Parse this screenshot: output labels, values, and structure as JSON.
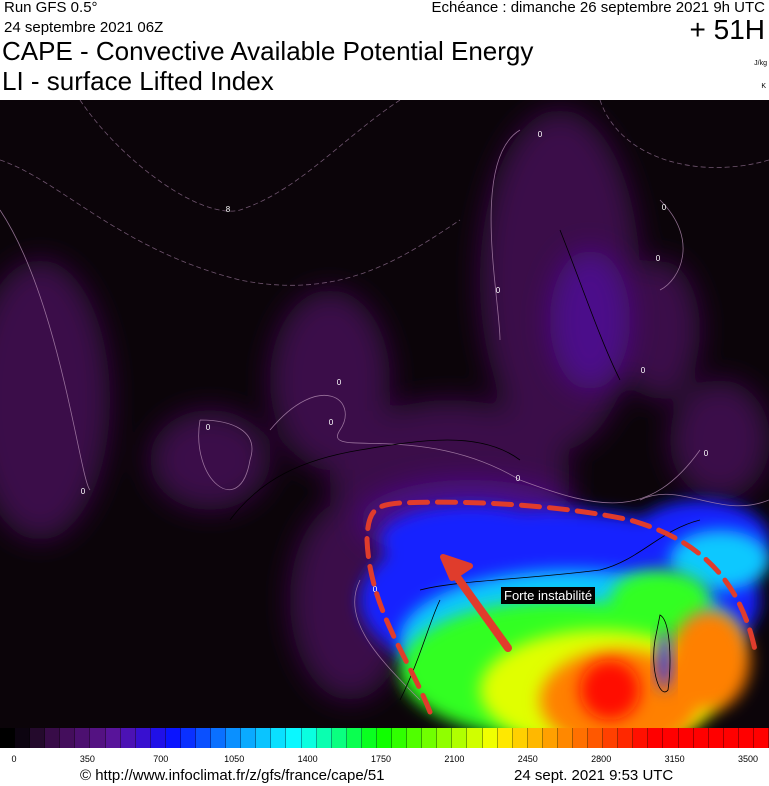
{
  "header": {
    "run": "Run GFS 0.5°",
    "run_date": "24 septembre 2021 06Z",
    "echeance": "Echéance : dimanche 26 septembre 2021 9h UTC",
    "lead_time": "+ 51H",
    "title_cape": "CAPE - Convective Available Potential Energy",
    "title_li": "LI - surface Lifted Index",
    "unit_cape": "J/kg",
    "unit_li": "K"
  },
  "map": {
    "annotation": "Forte instabilité",
    "annotation_color": "#e03c2c",
    "contour_labels": [
      "0",
      "8",
      "0",
      "0",
      "0",
      "0",
      "0",
      "0",
      "0",
      "0",
      "0",
      "0",
      "0"
    ]
  },
  "colorbar": {
    "tick_labels": [
      "0",
      "350",
      "700",
      "1050",
      "1400",
      "1750",
      "2100",
      "2450",
      "2800",
      "3150",
      "3500"
    ],
    "colors": [
      "#000000",
      "#0c0410",
      "#240a2c",
      "#380c48",
      "#440e5c",
      "#4c1070",
      "#541282",
      "#58149a",
      "#4c12b4",
      "#3810d0",
      "#2010e8",
      "#0a14ff",
      "#0a30ff",
      "#0a50ff",
      "#0a70ff",
      "#0a90ff",
      "#0aaaff",
      "#0ac4ff",
      "#0ae0ff",
      "#0af8ff",
      "#0affe0",
      "#0affb0",
      "#0aff80",
      "#0aff50",
      "#0aff20",
      "#10ff00",
      "#30ff00",
      "#50ff00",
      "#70ff00",
      "#90ff00",
      "#b0ff00",
      "#d0ff00",
      "#f0ff00",
      "#ffe800",
      "#ffd000",
      "#ffb800",
      "#ffa000",
      "#ff8800",
      "#ff7000",
      "#ff5800",
      "#ff4000",
      "#ff2800",
      "#ff1000",
      "#ff0000",
      "#ff0000",
      "#ff0000",
      "#ff0000",
      "#ff0000",
      "#ff0000",
      "#ff0000",
      "#ff0000"
    ]
  },
  "footer": {
    "source": "© http://www.infoclimat.fr/z/gfs/france/cape/51",
    "generated": "24 sept. 2021  9:53 UTC"
  }
}
